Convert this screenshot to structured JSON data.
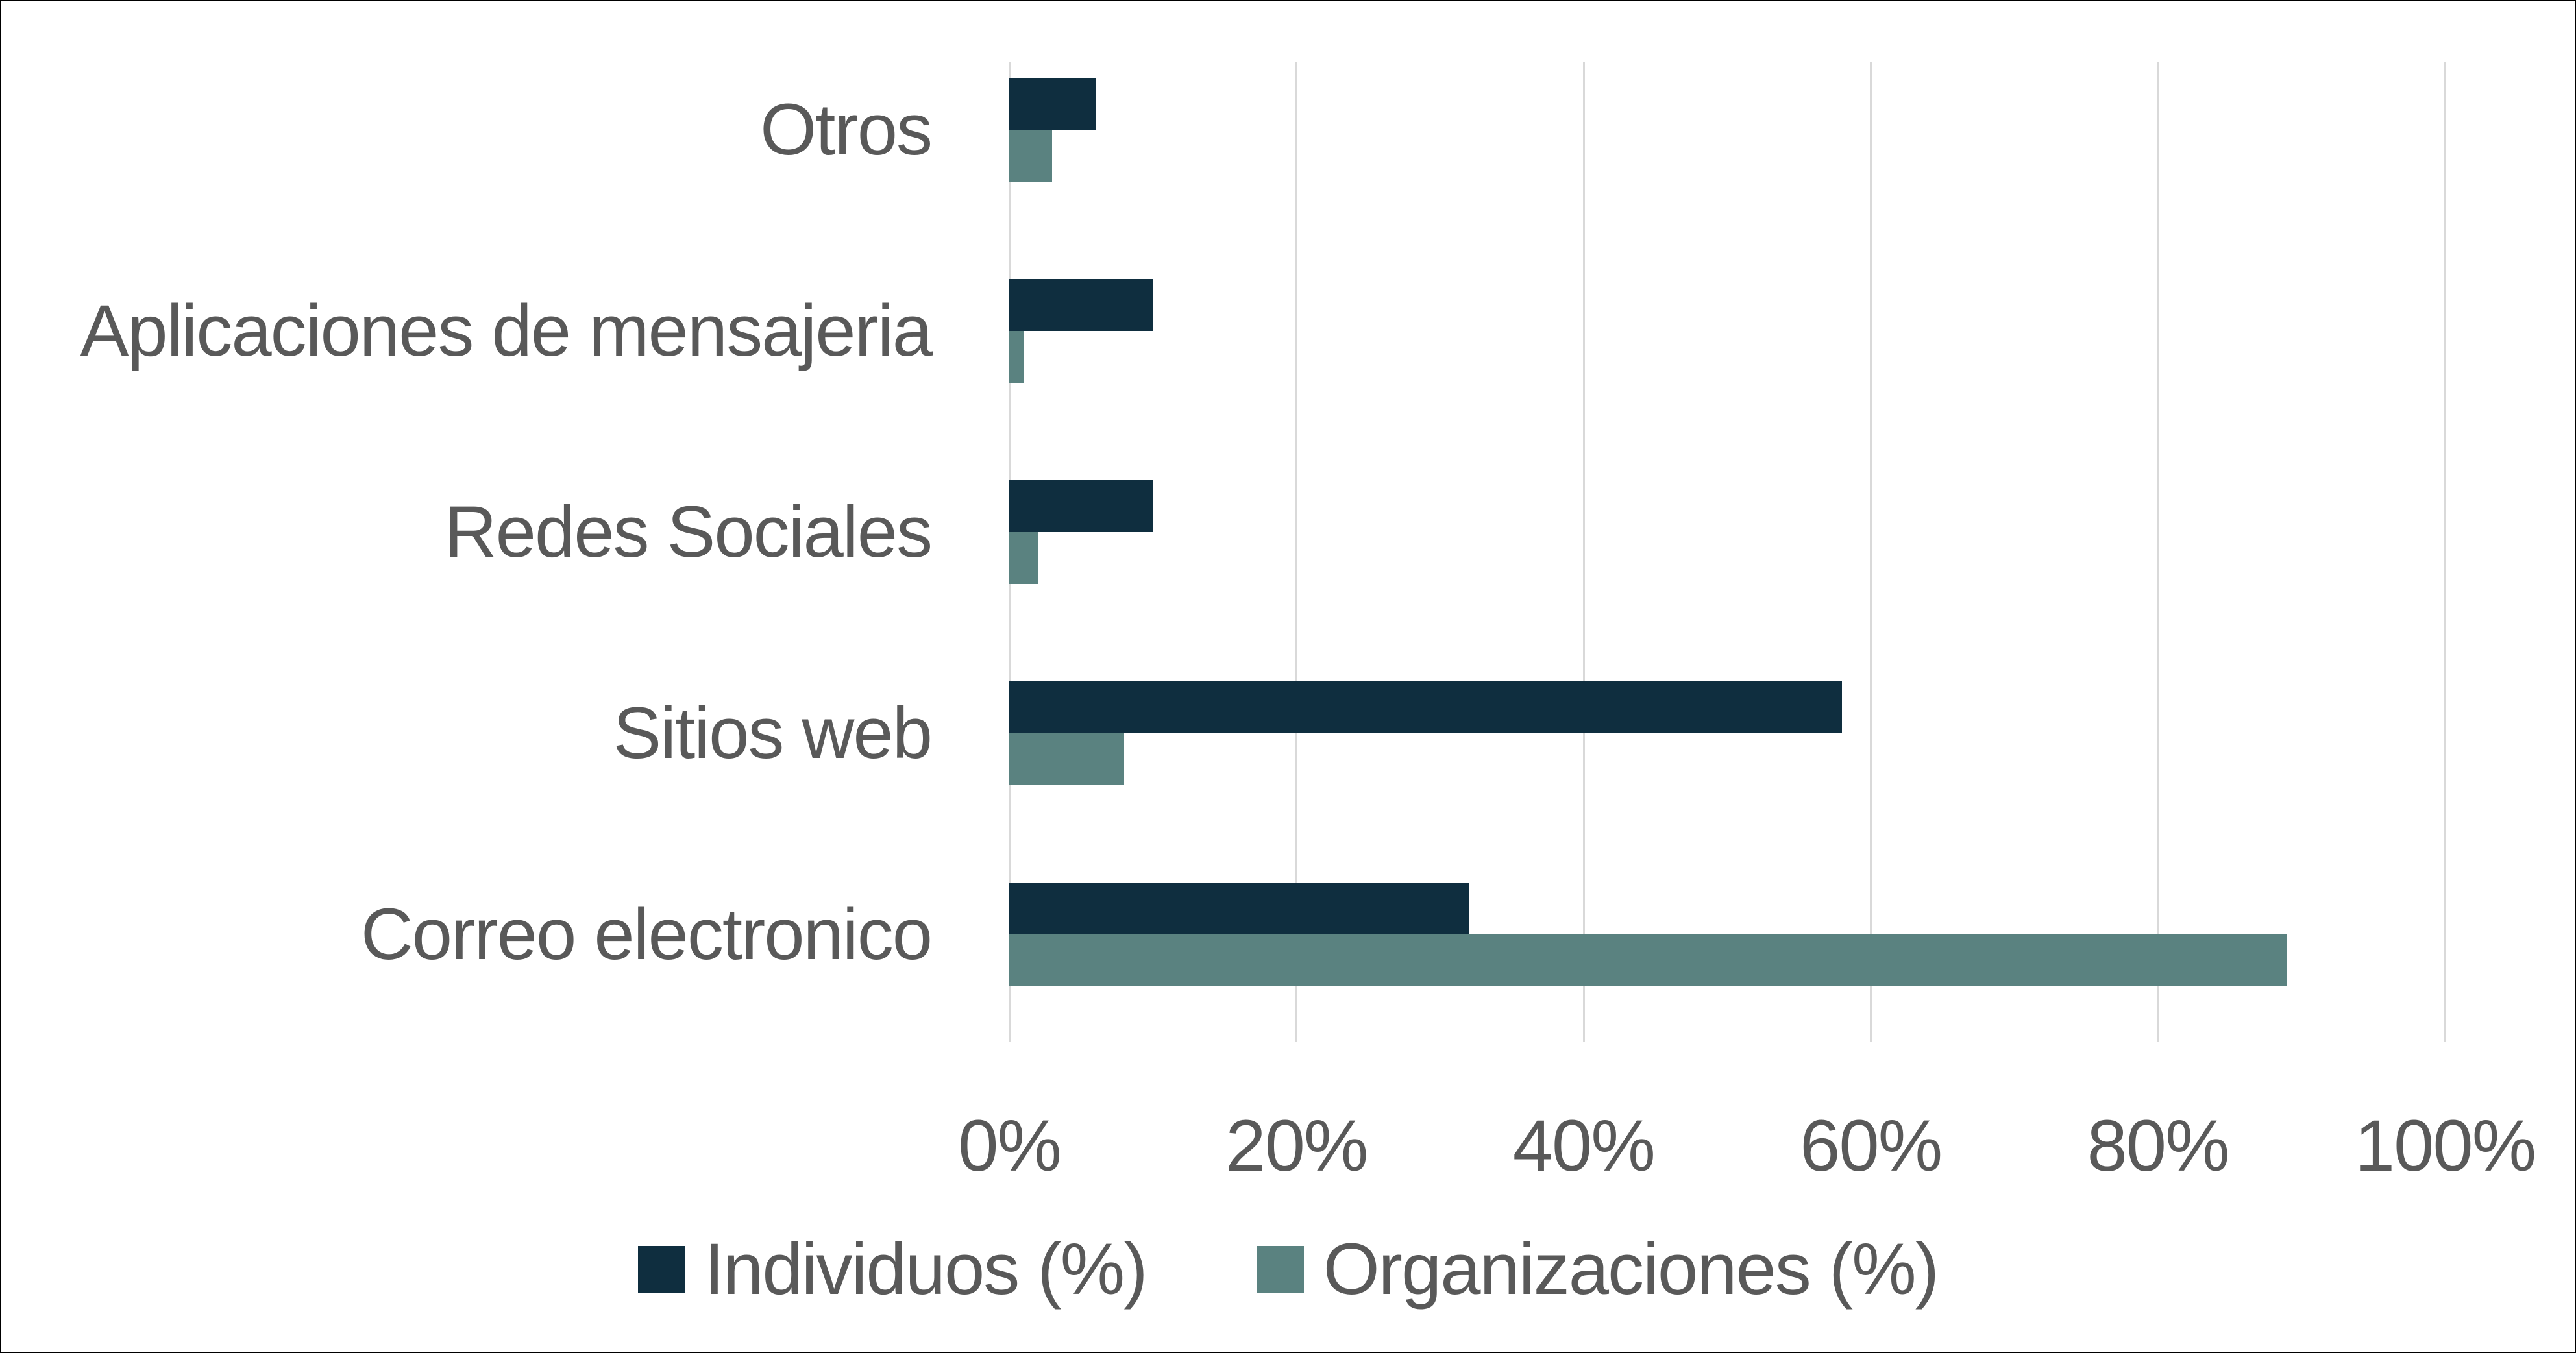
{
  "chart_data": {
    "type": "bar",
    "orientation": "horizontal",
    "title": "",
    "xlabel": "",
    "ylabel": "",
    "categories": [
      "Otros",
      "Aplicaciones de mensajeria",
      "Redes Sociales",
      "Sitios web",
      "Correo electronico"
    ],
    "series": [
      {
        "name": "Individuos (%)",
        "color": "#0F2E3F",
        "values": [
          6,
          10,
          10,
          58,
          32
        ]
      },
      {
        "name": "Organizaciones (%)",
        "color": "#5A8280",
        "values": [
          3,
          1,
          2,
          8,
          89
        ]
      }
    ],
    "xlim": [
      0,
      100
    ],
    "x_ticks": [
      "0%",
      "20%",
      "40%",
      "60%",
      "80%",
      "100%"
    ],
    "grid": "vertical",
    "legend_position": "bottom"
  },
  "labels": {
    "categories": [
      "Otros",
      "Aplicaciones de mensajeria",
      "Redes Sociales",
      "Sitios web",
      "Correo electronico"
    ],
    "ticks": [
      "0%",
      "20%",
      "40%",
      "60%",
      "80%",
      "100%"
    ],
    "legend": [
      "Individuos (%)",
      "Organizaciones (%)"
    ]
  },
  "colors": {
    "individuos": "#0F2E3F",
    "organizaciones": "#5A8280",
    "text": "#595959",
    "grid": "#D9D9D9"
  }
}
